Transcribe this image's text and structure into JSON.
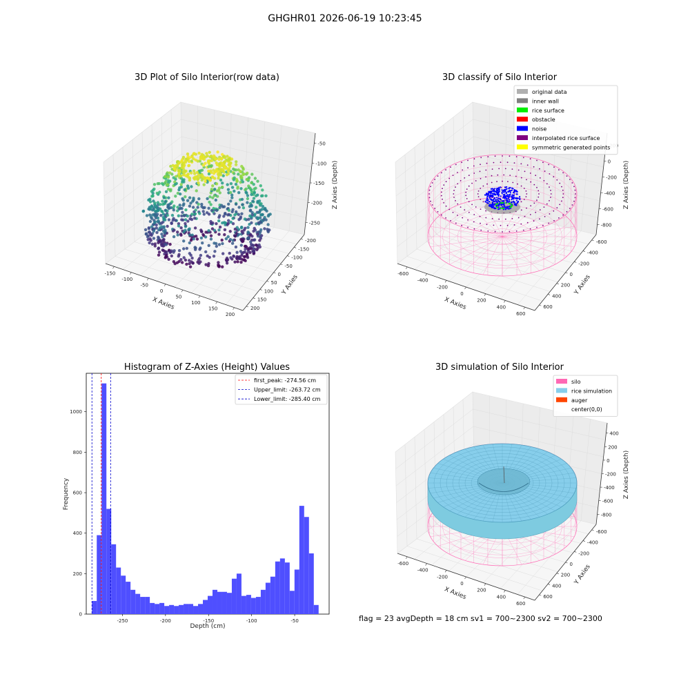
{
  "suptitle": "GHGHR01 2026-06-19 10:23:45",
  "footer": "flag = 23   avgDepth = 18 cm     sv1 = 700~2300  sv2 = 700~2300",
  "chart_data": [
    {
      "type": "scatter",
      "projection": "3d",
      "title": "3D Plot of Silo Interior(row data)",
      "xlabel": "X Axies",
      "ylabel": "Y Axies",
      "zlabel": "Z Axies (Depth)",
      "x_ticks": [
        "-150",
        "-100",
        "-50",
        "0",
        "50",
        "100",
        "150",
        "200"
      ],
      "y_ticks": [
        "200",
        "150",
        "100",
        "50",
        "0",
        "-50",
        "-100",
        "-150",
        "-200"
      ],
      "z_ticks": [
        "-50",
        "-100",
        "-150",
        "-200",
        "-250"
      ],
      "colormap": "viridis"
    },
    {
      "type": "scatter",
      "projection": "3d",
      "title": "3D classify of Silo Interior",
      "xlabel": "X Axies",
      "ylabel": "Y Axies",
      "zlabel": "Z Axies (Depth)",
      "x_ticks": [
        "-600",
        "-400",
        "-200",
        "0",
        "200",
        "400",
        "600"
      ],
      "y_ticks": [
        "600",
        "400",
        "200",
        "0",
        "-200",
        "-400",
        "-600"
      ],
      "z_ticks": [
        "200",
        "0",
        "-200",
        "-400",
        "-600",
        "-800"
      ],
      "z_top_tick": "200",
      "legend_location": "top-right",
      "legend": [
        {
          "label": "original data",
          "color": "#b0b0b0"
        },
        {
          "label": "inner wall",
          "color": "#808080"
        },
        {
          "label": "rice surface",
          "color": "#00ee00"
        },
        {
          "label": "obstacle",
          "color": "#ff0000"
        },
        {
          "label": "noise",
          "color": "#0000ff"
        },
        {
          "label": "interpolated rice surface",
          "color": "#800080"
        },
        {
          "label": "symmetric generated points",
          "color": "#ffff00"
        }
      ]
    },
    {
      "type": "bar",
      "title": "Histogram of Z-Axies (Height) Values",
      "xlabel": "Depth (cm)",
      "ylabel": "Frequency",
      "xlim": [
        -292,
        -10
      ],
      "ylim": [
        0,
        1190
      ],
      "x_ticks": [
        -250,
        -200,
        -150,
        -100,
        -50
      ],
      "y_ticks": [
        0,
        200,
        400,
        600,
        800,
        1000
      ],
      "bar_color": "#4f4fff",
      "bin_width": 5.6,
      "bin_start": -285.4,
      "values": [
        65,
        390,
        1140,
        520,
        345,
        230,
        190,
        160,
        120,
        100,
        85,
        85,
        55,
        50,
        55,
        40,
        45,
        40,
        45,
        50,
        50,
        40,
        50,
        70,
        90,
        120,
        110,
        110,
        105,
        175,
        200,
        90,
        95,
        80,
        85,
        120,
        155,
        185,
        260,
        275,
        255,
        115,
        220,
        535,
        480,
        300,
        45
      ],
      "vlines": [
        {
          "label": "first_peak: -274.56 cm",
          "x": -274.56,
          "color": "#ff0000"
        },
        {
          "label": "Upper_limit: -263.72 cm",
          "x": -263.72,
          "color": "#0000cc"
        },
        {
          "label": "Lower_limit: -285.40 cm",
          "x": -285.4,
          "color": "#0000cc"
        }
      ],
      "legend_location": "top-right"
    },
    {
      "type": "surface",
      "projection": "3d",
      "title": "3D simulation of Silo Interior",
      "xlabel": "X Axies",
      "ylabel": "Y Axies",
      "zlabel": "Z Axies (Depth)",
      "x_ticks": [
        "-600",
        "-400",
        "-200",
        "0",
        "200",
        "400",
        "600"
      ],
      "y_ticks": [
        "600",
        "400",
        "200",
        "0",
        "-200",
        "-400",
        "-600"
      ],
      "z_ticks": [
        "400",
        "200",
        "0",
        "-200",
        "-400",
        "-600",
        "-800"
      ],
      "legend_location": "top-right",
      "legend": [
        {
          "label": "silo",
          "color": "#ff69b4"
        },
        {
          "label": "rice simulation",
          "color": "#87ceeb"
        },
        {
          "label": "auger",
          "color": "#ff4500"
        },
        {
          "label": "center(0,0)",
          "color": ""
        }
      ]
    }
  ]
}
